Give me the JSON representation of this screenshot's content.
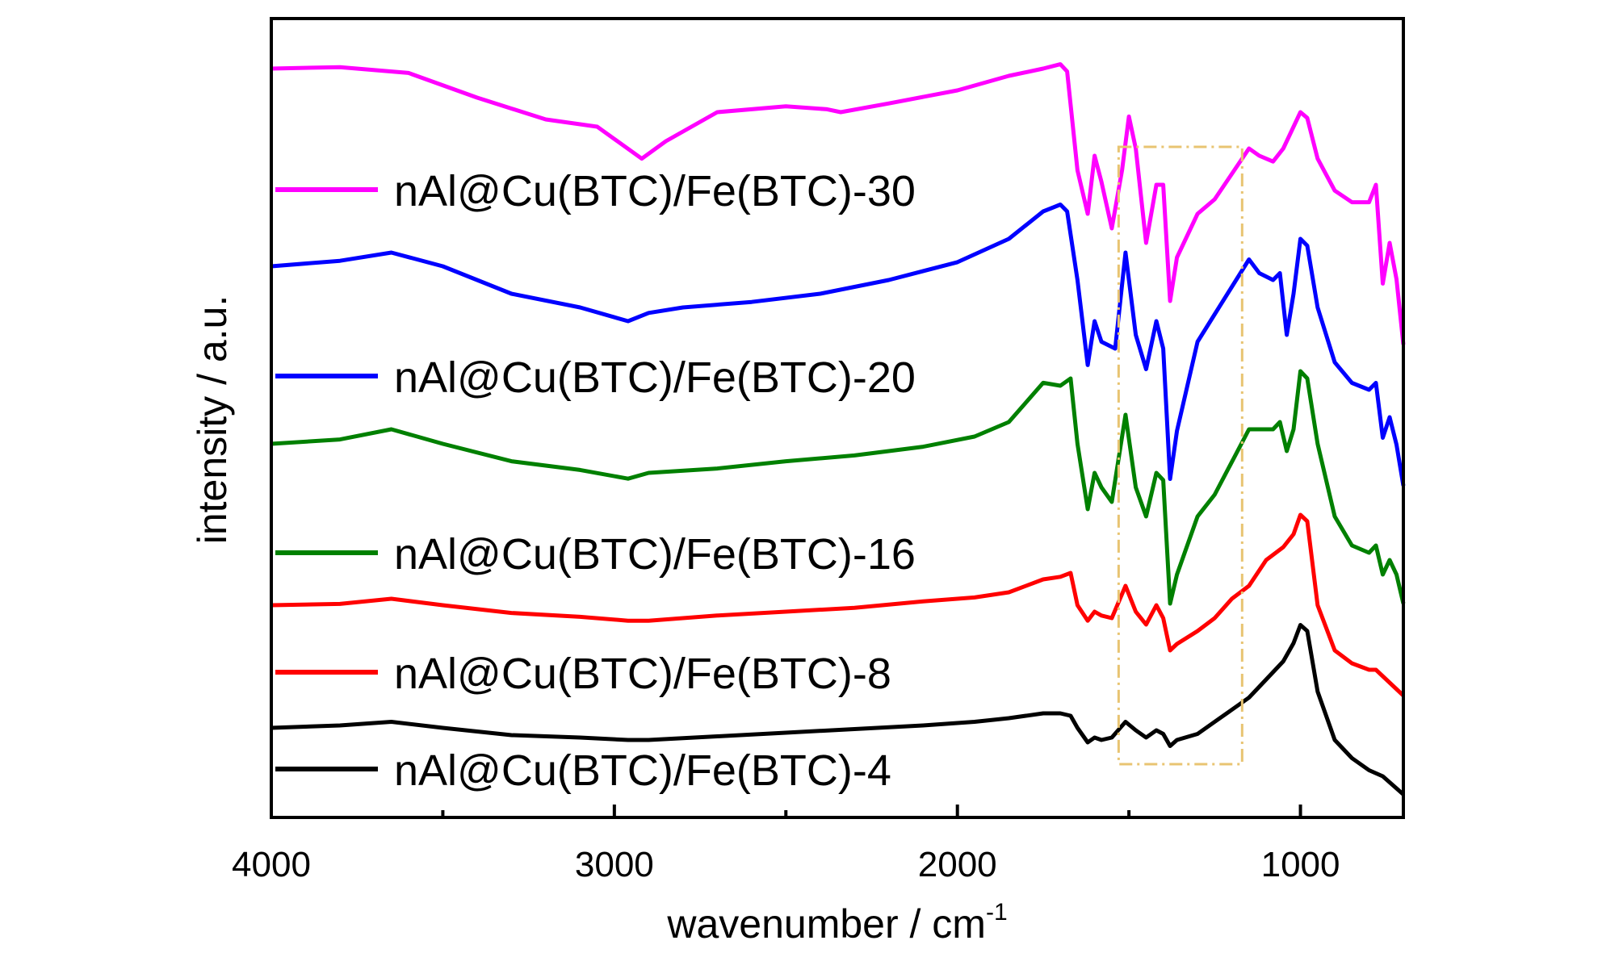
{
  "chart_data": {
    "type": "line",
    "title": "",
    "xlabel": "wavenumber / cm",
    "xlabel_superscript": "-1",
    "ylabel": "intensity / a.u.",
    "xlim": [
      4000,
      700
    ],
    "x_reversed": true,
    "x_ticks": [
      4000,
      3000,
      2000,
      1000
    ],
    "x_tick_labels": [
      "4000",
      "3000",
      "2000",
      "1000"
    ],
    "y_ticks_shown": false,
    "grid": false,
    "legend_position": "left, each label placed beside its own curve",
    "highlight_region": {
      "x_range": [
        1530,
        1170
      ],
      "style": "dash-dot",
      "color": "#e8c472"
    },
    "series": [
      {
        "name": "nAl@Cu(BTC)/Fe(BTC)-30",
        "color": "#ff00ff",
        "points": [
          [
            4000,
            0.0
          ],
          [
            3800,
            0.01
          ],
          [
            3600,
            -0.03
          ],
          [
            3400,
            -0.2
          ],
          [
            3200,
            -0.35
          ],
          [
            3050,
            -0.4
          ],
          [
            2920,
            -0.62
          ],
          [
            2850,
            -0.5
          ],
          [
            2700,
            -0.3
          ],
          [
            2500,
            -0.26
          ],
          [
            2380,
            -0.28
          ],
          [
            2340,
            -0.3
          ],
          [
            2200,
            -0.24
          ],
          [
            2000,
            -0.15
          ],
          [
            1850,
            -0.05
          ],
          [
            1750,
            0.0
          ],
          [
            1700,
            0.03
          ],
          [
            1680,
            -0.02
          ],
          [
            1650,
            -0.7
          ],
          [
            1620,
            -1.0
          ],
          [
            1600,
            -0.6
          ],
          [
            1580,
            -0.78
          ],
          [
            1550,
            -1.1
          ],
          [
            1520,
            -0.7
          ],
          [
            1500,
            -0.33
          ],
          [
            1480,
            -0.55
          ],
          [
            1450,
            -1.2
          ],
          [
            1420,
            -0.8
          ],
          [
            1400,
            -0.8
          ],
          [
            1380,
            -1.6
          ],
          [
            1360,
            -1.3
          ],
          [
            1300,
            -1.0
          ],
          [
            1250,
            -0.9
          ],
          [
            1150,
            -0.55
          ],
          [
            1120,
            -0.6
          ],
          [
            1080,
            -0.64
          ],
          [
            1050,
            -0.55
          ],
          [
            1000,
            -0.3
          ],
          [
            980,
            -0.34
          ],
          [
            950,
            -0.62
          ],
          [
            900,
            -0.84
          ],
          [
            850,
            -0.92
          ],
          [
            800,
            -0.92
          ],
          [
            780,
            -0.8
          ],
          [
            760,
            -1.48
          ],
          [
            740,
            -1.2
          ],
          [
            720,
            -1.45
          ],
          [
            700,
            -1.9
          ]
        ]
      },
      {
        "name": "nAl@Cu(BTC)/Fe(BTC)-20",
        "color": "#0000ff",
        "points": [
          [
            4000,
            0.0
          ],
          [
            3800,
            0.04
          ],
          [
            3650,
            0.1
          ],
          [
            3500,
            0.0
          ],
          [
            3300,
            -0.2
          ],
          [
            3100,
            -0.3
          ],
          [
            2960,
            -0.4
          ],
          [
            2900,
            -0.34
          ],
          [
            2800,
            -0.3
          ],
          [
            2600,
            -0.26
          ],
          [
            2400,
            -0.2
          ],
          [
            2200,
            -0.1
          ],
          [
            2000,
            0.03
          ],
          [
            1850,
            0.2
          ],
          [
            1750,
            0.4
          ],
          [
            1700,
            0.45
          ],
          [
            1680,
            0.4
          ],
          [
            1650,
            -0.1
          ],
          [
            1620,
            -0.72
          ],
          [
            1600,
            -0.4
          ],
          [
            1580,
            -0.55
          ],
          [
            1540,
            -0.6
          ],
          [
            1510,
            0.1
          ],
          [
            1480,
            -0.5
          ],
          [
            1450,
            -0.75
          ],
          [
            1420,
            -0.4
          ],
          [
            1400,
            -0.6
          ],
          [
            1380,
            -1.55
          ],
          [
            1360,
            -1.2
          ],
          [
            1300,
            -0.55
          ],
          [
            1250,
            -0.35
          ],
          [
            1150,
            0.05
          ],
          [
            1120,
            -0.05
          ],
          [
            1080,
            -0.1
          ],
          [
            1060,
            -0.05
          ],
          [
            1040,
            -0.5
          ],
          [
            1020,
            -0.2
          ],
          [
            1000,
            0.2
          ],
          [
            980,
            0.15
          ],
          [
            950,
            -0.3
          ],
          [
            900,
            -0.7
          ],
          [
            850,
            -0.85
          ],
          [
            800,
            -0.9
          ],
          [
            780,
            -0.85
          ],
          [
            760,
            -1.25
          ],
          [
            740,
            -1.1
          ],
          [
            720,
            -1.3
          ],
          [
            700,
            -1.6
          ]
        ]
      },
      {
        "name": "nAl@Cu(BTC)/Fe(BTC)-16",
        "color": "#008000",
        "points": [
          [
            4000,
            0.0
          ],
          [
            3800,
            0.03
          ],
          [
            3650,
            0.1
          ],
          [
            3500,
            0.0
          ],
          [
            3300,
            -0.12
          ],
          [
            3100,
            -0.18
          ],
          [
            2960,
            -0.24
          ],
          [
            2900,
            -0.2
          ],
          [
            2700,
            -0.17
          ],
          [
            2500,
            -0.12
          ],
          [
            2300,
            -0.08
          ],
          [
            2100,
            -0.02
          ],
          [
            1950,
            0.05
          ],
          [
            1850,
            0.15
          ],
          [
            1750,
            0.42
          ],
          [
            1700,
            0.4
          ],
          [
            1670,
            0.45
          ],
          [
            1650,
            0.0
          ],
          [
            1620,
            -0.45
          ],
          [
            1600,
            -0.2
          ],
          [
            1580,
            -0.3
          ],
          [
            1550,
            -0.4
          ],
          [
            1510,
            0.2
          ],
          [
            1480,
            -0.3
          ],
          [
            1450,
            -0.5
          ],
          [
            1420,
            -0.2
          ],
          [
            1400,
            -0.25
          ],
          [
            1380,
            -1.1
          ],
          [
            1360,
            -0.9
          ],
          [
            1300,
            -0.5
          ],
          [
            1250,
            -0.35
          ],
          [
            1150,
            0.1
          ],
          [
            1120,
            0.1
          ],
          [
            1080,
            0.1
          ],
          [
            1060,
            0.15
          ],
          [
            1040,
            -0.05
          ],
          [
            1020,
            0.1
          ],
          [
            1000,
            0.5
          ],
          [
            980,
            0.45
          ],
          [
            950,
            0.0
          ],
          [
            900,
            -0.5
          ],
          [
            850,
            -0.7
          ],
          [
            800,
            -0.75
          ],
          [
            780,
            -0.7
          ],
          [
            760,
            -0.9
          ],
          [
            740,
            -0.8
          ],
          [
            720,
            -0.9
          ],
          [
            700,
            -1.1
          ]
        ]
      },
      {
        "name": "nAl@Cu(BTC)/Fe(BTC)-8",
        "color": "#ff0000",
        "points": [
          [
            4000,
            0.0
          ],
          [
            3800,
            0.01
          ],
          [
            3650,
            0.05
          ],
          [
            3500,
            0.0
          ],
          [
            3300,
            -0.06
          ],
          [
            3100,
            -0.09
          ],
          [
            2960,
            -0.12
          ],
          [
            2900,
            -0.12
          ],
          [
            2700,
            -0.08
          ],
          [
            2500,
            -0.05
          ],
          [
            2300,
            -0.02
          ],
          [
            2100,
            0.03
          ],
          [
            1950,
            0.06
          ],
          [
            1850,
            0.1
          ],
          [
            1750,
            0.2
          ],
          [
            1700,
            0.22
          ],
          [
            1670,
            0.25
          ],
          [
            1650,
            0.0
          ],
          [
            1620,
            -0.12
          ],
          [
            1600,
            -0.05
          ],
          [
            1580,
            -0.08
          ],
          [
            1550,
            -0.1
          ],
          [
            1510,
            0.15
          ],
          [
            1480,
            -0.05
          ],
          [
            1450,
            -0.15
          ],
          [
            1420,
            0.0
          ],
          [
            1400,
            -0.1
          ],
          [
            1380,
            -0.35
          ],
          [
            1360,
            -0.3
          ],
          [
            1300,
            -0.2
          ],
          [
            1250,
            -0.1
          ],
          [
            1200,
            0.05
          ],
          [
            1150,
            0.15
          ],
          [
            1100,
            0.35
          ],
          [
            1050,
            0.45
          ],
          [
            1020,
            0.55
          ],
          [
            1000,
            0.7
          ],
          [
            980,
            0.65
          ],
          [
            950,
            0.0
          ],
          [
            900,
            -0.35
          ],
          [
            850,
            -0.45
          ],
          [
            800,
            -0.5
          ],
          [
            780,
            -0.5
          ],
          [
            760,
            -0.55
          ],
          [
            740,
            -0.6
          ],
          [
            700,
            -0.7
          ]
        ]
      },
      {
        "name": "nAl@Cu(BTC)/Fe(BTC)-4",
        "color": "#000000",
        "points": [
          [
            4000,
            0.0
          ],
          [
            3800,
            0.02
          ],
          [
            3650,
            0.05
          ],
          [
            3500,
            0.0
          ],
          [
            3300,
            -0.06
          ],
          [
            3100,
            -0.08
          ],
          [
            2960,
            -0.1
          ],
          [
            2900,
            -0.1
          ],
          [
            2700,
            -0.07
          ],
          [
            2500,
            -0.04
          ],
          [
            2300,
            -0.01
          ],
          [
            2100,
            0.02
          ],
          [
            1950,
            0.05
          ],
          [
            1850,
            0.08
          ],
          [
            1750,
            0.12
          ],
          [
            1700,
            0.12
          ],
          [
            1670,
            0.1
          ],
          [
            1650,
            0.0
          ],
          [
            1620,
            -0.12
          ],
          [
            1600,
            -0.08
          ],
          [
            1580,
            -0.1
          ],
          [
            1550,
            -0.08
          ],
          [
            1510,
            0.05
          ],
          [
            1480,
            -0.02
          ],
          [
            1450,
            -0.08
          ],
          [
            1420,
            -0.02
          ],
          [
            1400,
            -0.05
          ],
          [
            1380,
            -0.15
          ],
          [
            1360,
            -0.1
          ],
          [
            1300,
            -0.05
          ],
          [
            1250,
            0.05
          ],
          [
            1200,
            0.15
          ],
          [
            1150,
            0.25
          ],
          [
            1100,
            0.4
          ],
          [
            1050,
            0.55
          ],
          [
            1020,
            0.7
          ],
          [
            1000,
            0.85
          ],
          [
            980,
            0.8
          ],
          [
            950,
            0.3
          ],
          [
            900,
            -0.1
          ],
          [
            850,
            -0.25
          ],
          [
            800,
            -0.35
          ],
          [
            760,
            -0.4
          ],
          [
            740,
            -0.45
          ],
          [
            700,
            -0.55
          ]
        ]
      }
    ]
  }
}
